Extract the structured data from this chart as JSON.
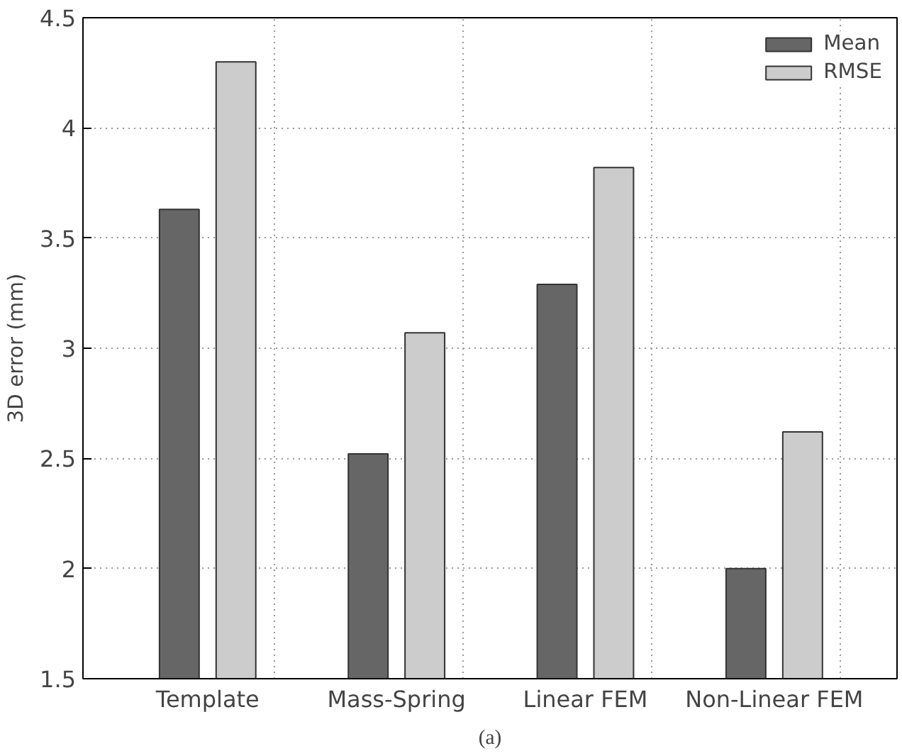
{
  "chart_data": {
    "type": "bar",
    "ylabel": "3D error (mm)",
    "categories": [
      "Template",
      "Mass-Spring",
      "Linear FEM",
      "Non-Linear FEM"
    ],
    "series": [
      {
        "name": "Mean",
        "color": "#666666",
        "values": [
          3.63,
          2.52,
          3.29,
          2.0
        ]
      },
      {
        "name": "RMSE",
        "color": "#cccccc",
        "values": [
          4.3,
          3.07,
          3.82,
          2.62
        ]
      }
    ],
    "ylim": [
      1.5,
      4.5
    ],
    "yticks": [
      1.5,
      2,
      2.5,
      3,
      3.5,
      4,
      4.5
    ],
    "grid": true,
    "legend": "top right",
    "annotations": [
      "(a)"
    ]
  }
}
